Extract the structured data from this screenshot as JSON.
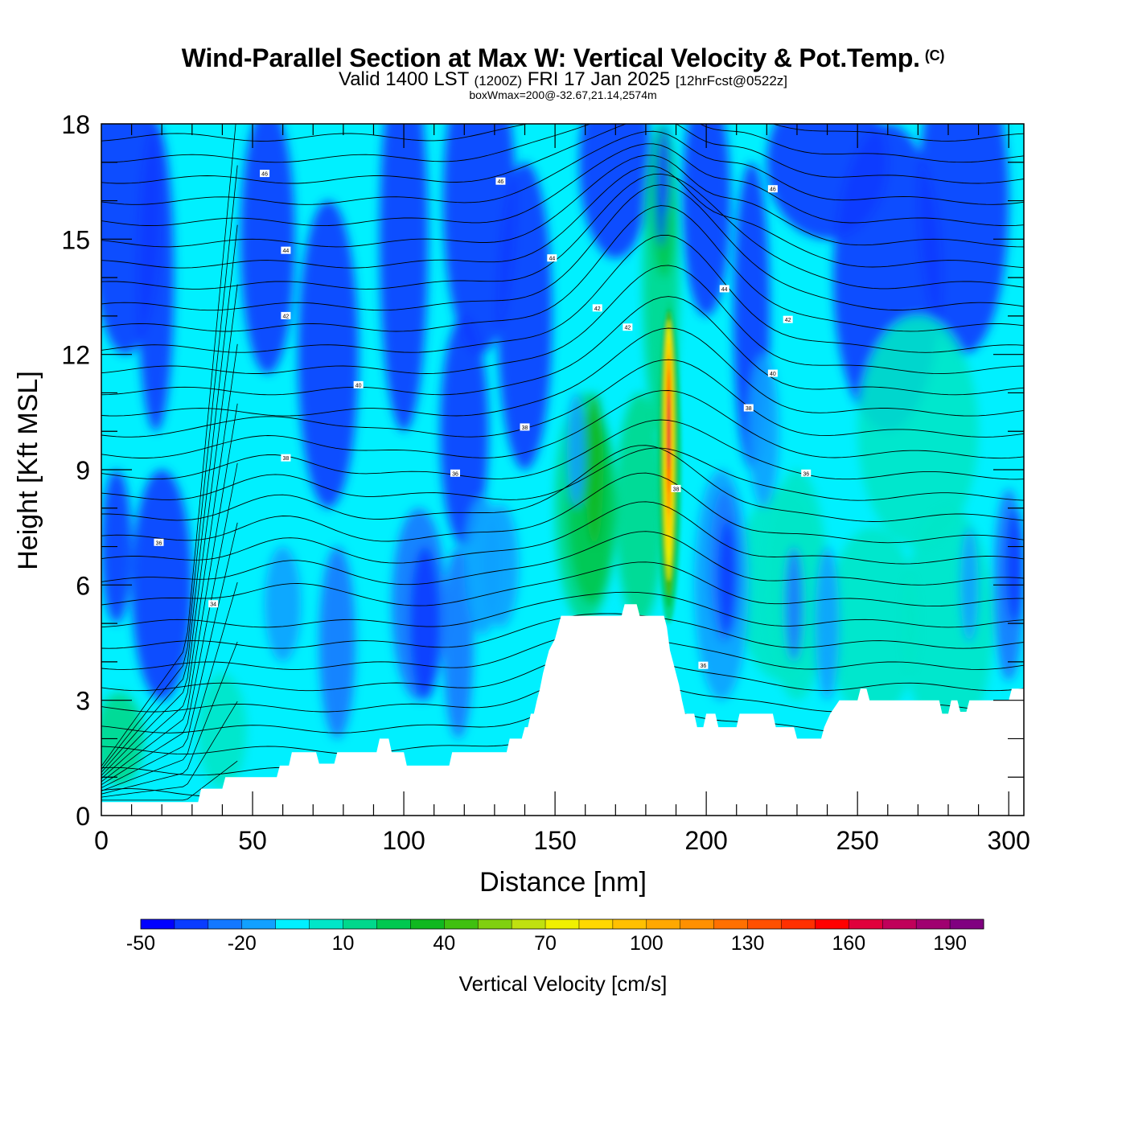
{
  "chart_data": {
    "type": "heatmap",
    "title": "Wind-Parallel Section at Max W: Vertical Velocity & Pot.Temp.",
    "copyright": "(C)",
    "subtitle_main": "Valid 1400 LST",
    "subtitle_z": "(1200Z)",
    "subtitle_date": "FRI 17 Jan 2025",
    "subtitle_fcst": "[12hrFcst@0522z]",
    "box_info": "boxWmax=200@-32.67,21.14,2574m",
    "xlabel": "Distance [nm]",
    "ylabel": "Height [Kft MSL]",
    "xlim": [
      0,
      305
    ],
    "ylim": [
      0,
      18
    ],
    "x_ticks": [
      0,
      50,
      100,
      150,
      200,
      250,
      300
    ],
    "y_ticks": [
      0,
      3,
      6,
      9,
      12,
      15,
      18
    ],
    "colorbar": {
      "title": "Vertical Velocity [cm/s]",
      "levels": [
        -50,
        -40,
        -30,
        -20,
        -10,
        0,
        10,
        20,
        30,
        40,
        50,
        60,
        70,
        80,
        90,
        100,
        110,
        120,
        130,
        140,
        150,
        160,
        170,
        180,
        190,
        200
      ],
      "labels": [
        "-50",
        "-20",
        "10",
        "40",
        "70",
        "100",
        "130",
        "160",
        "190"
      ],
      "colors": [
        "#0000ff",
        "#0a3cff",
        "#1478ff",
        "#11a0ff",
        "#00f0ff",
        "#00e6c8",
        "#00d88c",
        "#00c850",
        "#10b820",
        "#40c010",
        "#80d010",
        "#c0e010",
        "#f0f000",
        "#ffd800",
        "#ffc000",
        "#ffa800",
        "#ff9000",
        "#ff7000",
        "#ff5000",
        "#ff3000",
        "#ff0000",
        "#e0003c",
        "#c0005a",
        "#a00070",
        "#800080"
      ]
    },
    "terrain_kft": [
      [
        0,
        0.35
      ],
      [
        32,
        0.35
      ],
      [
        33,
        0.7
      ],
      [
        40,
        0.7
      ],
      [
        41,
        1.0
      ],
      [
        58,
        1.0
      ],
      [
        59,
        1.3
      ],
      [
        62,
        1.3
      ],
      [
        63,
        1.65
      ],
      [
        71,
        1.65
      ],
      [
        72,
        1.35
      ],
      [
        77,
        1.35
      ],
      [
        78,
        1.65
      ],
      [
        91,
        1.65
      ],
      [
        92,
        2.0
      ],
      [
        95,
        2.0
      ],
      [
        96,
        1.65
      ],
      [
        100,
        1.65
      ],
      [
        101,
        1.3
      ],
      [
        115,
        1.3
      ],
      [
        116,
        1.65
      ],
      [
        134,
        1.65
      ],
      [
        135,
        2.0
      ],
      [
        139,
        2.0
      ],
      [
        140,
        2.3
      ],
      [
        141,
        2.3
      ],
      [
        142,
        2.65
      ],
      [
        143,
        2.65
      ],
      [
        144,
        3.0
      ],
      [
        145,
        3.3
      ],
      [
        146,
        3.7
      ],
      [
        147,
        4.0
      ],
      [
        148,
        4.3
      ],
      [
        150,
        4.6
      ],
      [
        151,
        4.9
      ],
      [
        152,
        5.2
      ],
      [
        172,
        5.2
      ],
      [
        173,
        5.5
      ],
      [
        177,
        5.5
      ],
      [
        178,
        5.2
      ],
      [
        186,
        5.2
      ],
      [
        187,
        4.9
      ],
      [
        188,
        4.3
      ],
      [
        189,
        4.0
      ],
      [
        190,
        3.7
      ],
      [
        191,
        3.4
      ],
      [
        192,
        3.0
      ],
      [
        193,
        2.65
      ],
      [
        196,
        2.65
      ],
      [
        197,
        2.3
      ],
      [
        199,
        2.3
      ],
      [
        200,
        2.65
      ],
      [
        203,
        2.65
      ],
      [
        204,
        2.3
      ],
      [
        210,
        2.3
      ],
      [
        211,
        2.65
      ],
      [
        222,
        2.65
      ],
      [
        223,
        2.3
      ],
      [
        229,
        2.3
      ],
      [
        230,
        2.0
      ],
      [
        238,
        2.0
      ],
      [
        239,
        2.3
      ],
      [
        241,
        2.65
      ],
      [
        244,
        3.0
      ],
      [
        250,
        3.0
      ],
      [
        251,
        3.3
      ],
      [
        253,
        3.3
      ],
      [
        254,
        3.0
      ],
      [
        277,
        3.0
      ],
      [
        278,
        2.65
      ],
      [
        280,
        2.65
      ],
      [
        281,
        3.0
      ],
      [
        283,
        3.0
      ],
      [
        284,
        2.7
      ],
      [
        286,
        2.7
      ],
      [
        287,
        3.0
      ],
      [
        300,
        3.0
      ],
      [
        301,
        3.3
      ],
      [
        305,
        3.3
      ]
    ],
    "theta_contours_note": "black potential temperature isolines",
    "theta_labels": [
      {
        "x": 54,
        "y": 16.7,
        "text": "46"
      },
      {
        "x": 132,
        "y": 16.5,
        "text": "46"
      },
      {
        "x": 222,
        "y": 16.3,
        "text": "46"
      },
      {
        "x": 61,
        "y": 14.7,
        "text": "44"
      },
      {
        "x": 149,
        "y": 14.5,
        "text": "44"
      },
      {
        "x": 206,
        "y": 13.7,
        "text": "44"
      },
      {
        "x": 61,
        "y": 13.0,
        "text": "42"
      },
      {
        "x": 164,
        "y": 13.2,
        "text": "42"
      },
      {
        "x": 174,
        "y": 12.7,
        "text": "42"
      },
      {
        "x": 227,
        "y": 12.9,
        "text": "42"
      },
      {
        "x": 85,
        "y": 11.2,
        "text": "40"
      },
      {
        "x": 222,
        "y": 11.5,
        "text": "40"
      },
      {
        "x": 140,
        "y": 10.1,
        "text": "38"
      },
      {
        "x": 214,
        "y": 10.6,
        "text": "38"
      },
      {
        "x": 61,
        "y": 9.3,
        "text": "38"
      },
      {
        "x": 117,
        "y": 8.9,
        "text": "36"
      },
      {
        "x": 233,
        "y": 8.9,
        "text": "36"
      },
      {
        "x": 190,
        "y": 8.5,
        "text": "38"
      },
      {
        "x": 19,
        "y": 7.1,
        "text": "36"
      },
      {
        "x": 37,
        "y": 5.5,
        "text": "34"
      },
      {
        "x": 199,
        "y": 3.9,
        "text": "36"
      }
    ]
  }
}
